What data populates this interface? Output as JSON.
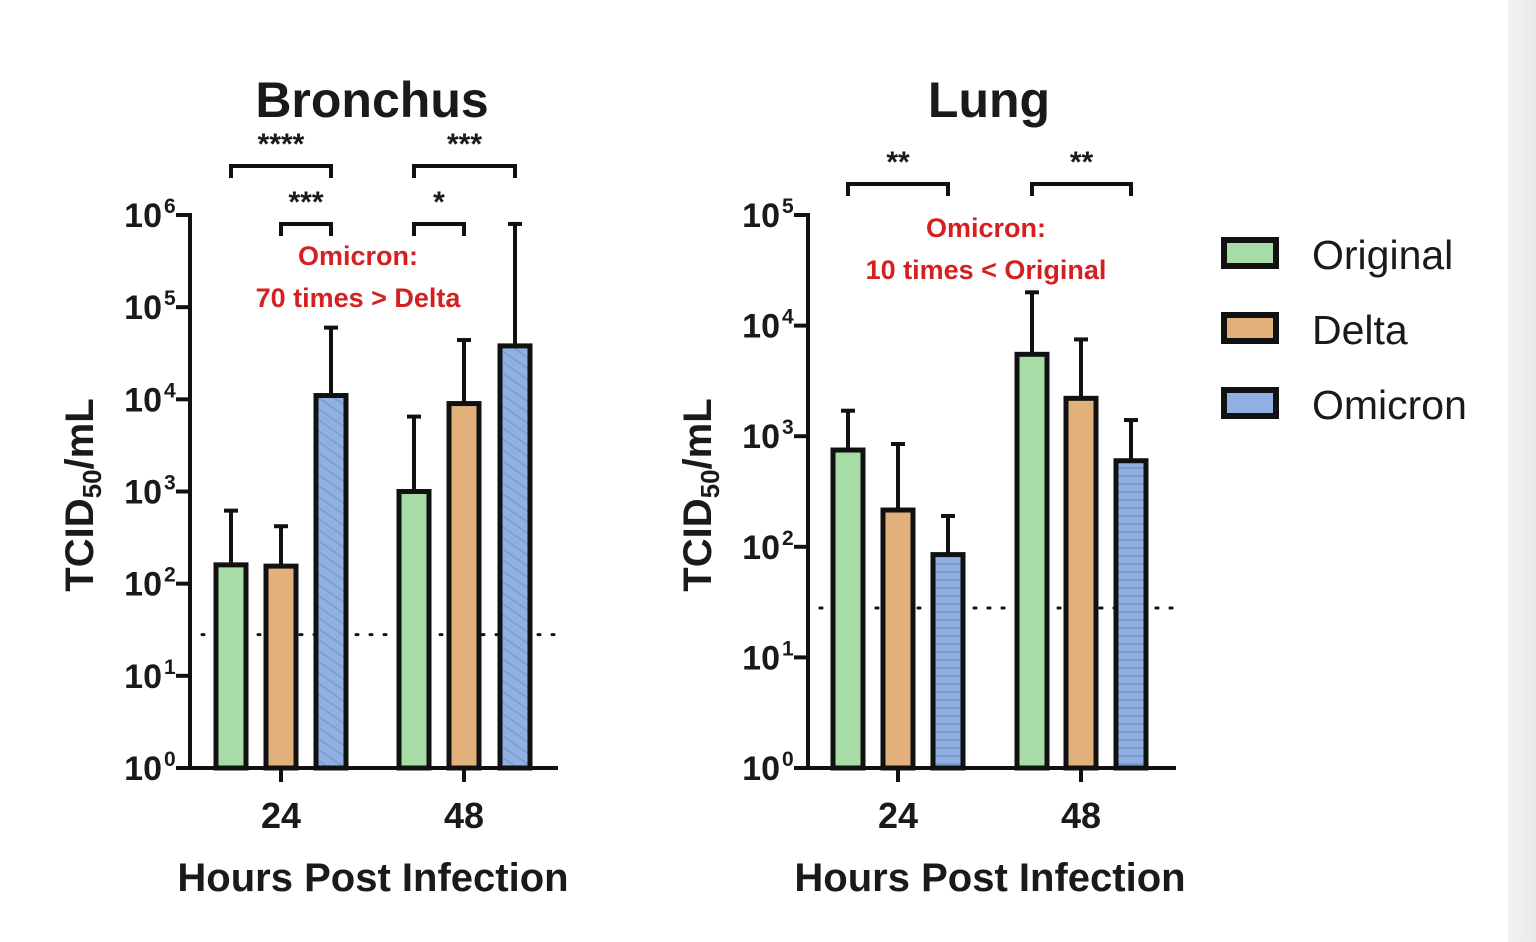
{
  "colors": {
    "Original": "#a8dca6",
    "Delta": "#e2b07a",
    "Omicron": "#8fb0e0",
    "stroke": "#111111",
    "annotation": "#d42020"
  },
  "legend": {
    "items": [
      {
        "name": "Original",
        "color": "#a8dca6"
      },
      {
        "name": "Delta",
        "color": "#e2b07a"
      },
      {
        "name": "Omicron",
        "color": "#8fb0e0"
      }
    ],
    "placement": "right"
  },
  "chart_data": [
    {
      "type": "bar",
      "title": "Bronchus",
      "xlabel": "Hours Post Infection",
      "ylabel": "TCID50/mL",
      "ylabel_base": "TCID",
      "ylabel_sub": "50",
      "ylabel_unit": "/mL",
      "yscale": "log",
      "ylim": [
        1,
        1000000
      ],
      "yticks": [
        {
          "base": "10",
          "exp": "0",
          "value": 1
        },
        {
          "base": "10",
          "exp": "1",
          "value": 10
        },
        {
          "base": "10",
          "exp": "2",
          "value": 100
        },
        {
          "base": "10",
          "exp": "3",
          "value": 1000
        },
        {
          "base": "10",
          "exp": "4",
          "value": 10000
        },
        {
          "base": "10",
          "exp": "5",
          "value": 100000
        },
        {
          "base": "10",
          "exp": "6",
          "value": 1000000
        }
      ],
      "categories": [
        "24",
        "48"
      ],
      "series": [
        {
          "name": "Original",
          "values": [
            160,
            1000
          ],
          "error_upper": [
            620,
            6500
          ]
        },
        {
          "name": "Delta",
          "values": [
            155,
            9000
          ],
          "error_upper": [
            420,
            44000
          ]
        },
        {
          "name": "Omicron",
          "values": [
            11000,
            38000
          ],
          "error_upper": [
            60000,
            800000
          ]
        }
      ],
      "detection_limit": 28,
      "significance": [
        {
          "category": "24",
          "from": "Original",
          "to": "Omicron",
          "label": "****",
          "level": 2
        },
        {
          "category": "24",
          "from": "Delta",
          "to": "Omicron",
          "label": "***",
          "level": 1
        },
        {
          "category": "48",
          "from": "Original",
          "to": "Omicron",
          "label": "***",
          "level": 2
        },
        {
          "category": "48",
          "from": "Original",
          "to": "Delta",
          "label": "*",
          "level": 1
        }
      ],
      "annotation": [
        "Omicron:",
        "70 times > Delta"
      ]
    },
    {
      "type": "bar",
      "title": "Lung",
      "xlabel": "Hours Post Infection",
      "ylabel": "TCID50/mL",
      "ylabel_base": "TCID",
      "ylabel_sub": "50",
      "ylabel_unit": "/mL",
      "yscale": "log",
      "ylim": [
        1,
        100000
      ],
      "yticks": [
        {
          "base": "10",
          "exp": "0",
          "value": 1
        },
        {
          "base": "10",
          "exp": "1",
          "value": 10
        },
        {
          "base": "10",
          "exp": "2",
          "value": 100
        },
        {
          "base": "10",
          "exp": "3",
          "value": 1000
        },
        {
          "base": "10",
          "exp": "4",
          "value": 10000
        },
        {
          "base": "10",
          "exp": "5",
          "value": 100000
        }
      ],
      "categories": [
        "24",
        "48"
      ],
      "series": [
        {
          "name": "Original",
          "values": [
            750,
            5500
          ],
          "error_upper": [
            1700,
            20000
          ]
        },
        {
          "name": "Delta",
          "values": [
            215,
            2200
          ],
          "error_upper": [
            850,
            7500
          ]
        },
        {
          "name": "Omicron",
          "values": [
            85,
            600
          ],
          "error_upper": [
            190,
            1400
          ]
        }
      ],
      "detection_limit": 28,
      "significance": [
        {
          "category": "24",
          "from": "Original",
          "to": "Omicron",
          "label": "**",
          "level": 1
        },
        {
          "category": "48",
          "from": "Original",
          "to": "Omicron",
          "label": "**",
          "level": 1
        }
      ],
      "annotation": [
        "Omicron:",
        "10 times < Original"
      ]
    }
  ]
}
